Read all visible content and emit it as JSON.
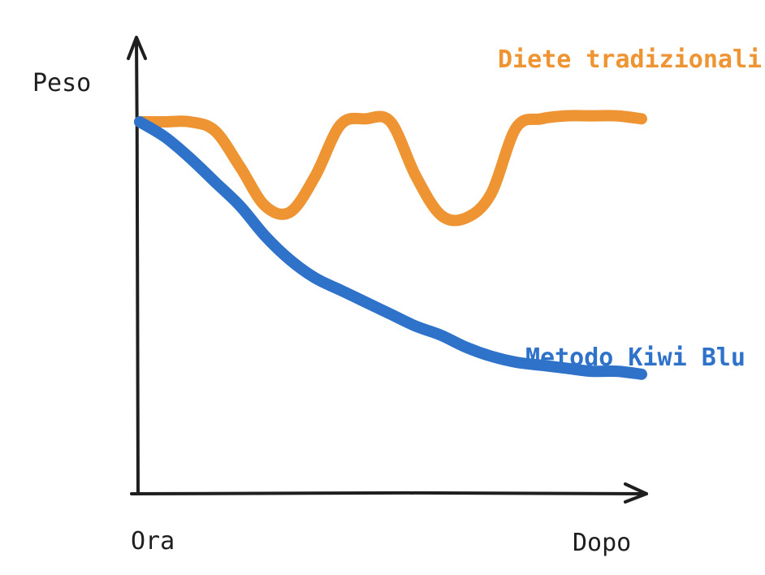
{
  "chart_data": {
    "type": "line",
    "ylabel": "Peso",
    "x_tick_labels": {
      "start": "Ora",
      "end": "Dopo"
    },
    "grid": false,
    "y_ticks_shown": false,
    "x": [
      0,
      5,
      10,
      15,
      20,
      25,
      30,
      35,
      40,
      45,
      50,
      55,
      60,
      65,
      70,
      75,
      80,
      85,
      90,
      95,
      100
    ],
    "ylim": [
      0,
      100
    ],
    "series": [
      {
        "name": "Diete tradizionali",
        "color": "#ee9433",
        "values": [
          100,
          100,
          100,
          97,
          85,
          72,
          70,
          82,
          99,
          101,
          100,
          82,
          69,
          68,
          76,
          98,
          101,
          102,
          102,
          102,
          101
        ]
      },
      {
        "name": "Metodo Kiwi Blu",
        "color": "#2e72c9",
        "values": [
          100,
          95,
          88,
          80,
          72,
          62,
          54,
          48,
          44,
          40,
          36,
          32,
          29,
          25,
          22,
          20,
          19,
          18,
          17,
          17,
          16
        ]
      }
    ]
  }
}
